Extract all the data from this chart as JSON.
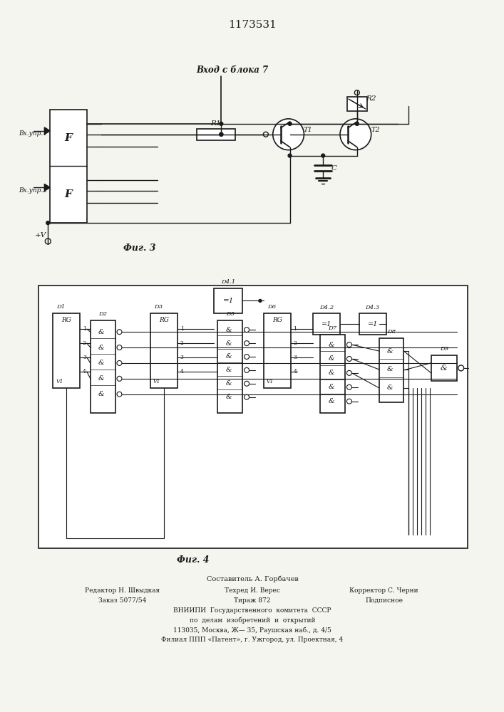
{
  "title": "1173531",
  "fig3_label": "Фиг. 3",
  "fig4_label": "Фиг. 4",
  "bg_color": "#f5f5f0",
  "line_color": "#1a1a1a",
  "text_color": "#1a1a1a",
  "entry_label_top": "Вх.упр.1",
  "entry_label_bot": "Вх.пр.2",
  "vход_label": "Вход с блока 7",
  "plus_v": "+V",
  "R1": "R1",
  "R2": "R2",
  "T1": "T1",
  "T2": "T2",
  "C": "C",
  "footer_col1_line1": "Редактор Н. Швыдкая",
  "footer_col1_line2": "Заказ 5077/54",
  "footer_col2_line0": "Составитель А. Горбачев",
  "footer_col2_line1": "Техред И. Верес",
  "footer_col2_line2": "Тираж 872",
  "footer_col3_line1": "Корректор С. Черни",
  "footer_col3_line2": "Подписное",
  "footer_vniipи1": "ВНИИПИ  Государственного  комитета  СССР",
  "footer_vniipи2": "по  делам  изобретений  и  открытий",
  "footer_vniipи3": "113035, Москва, Ж— 35, Раушская наб., д. 4/5",
  "footer_vniipи4": "Филиал ППП «Патент», г. Ужгород, ул. Проектная, 4"
}
